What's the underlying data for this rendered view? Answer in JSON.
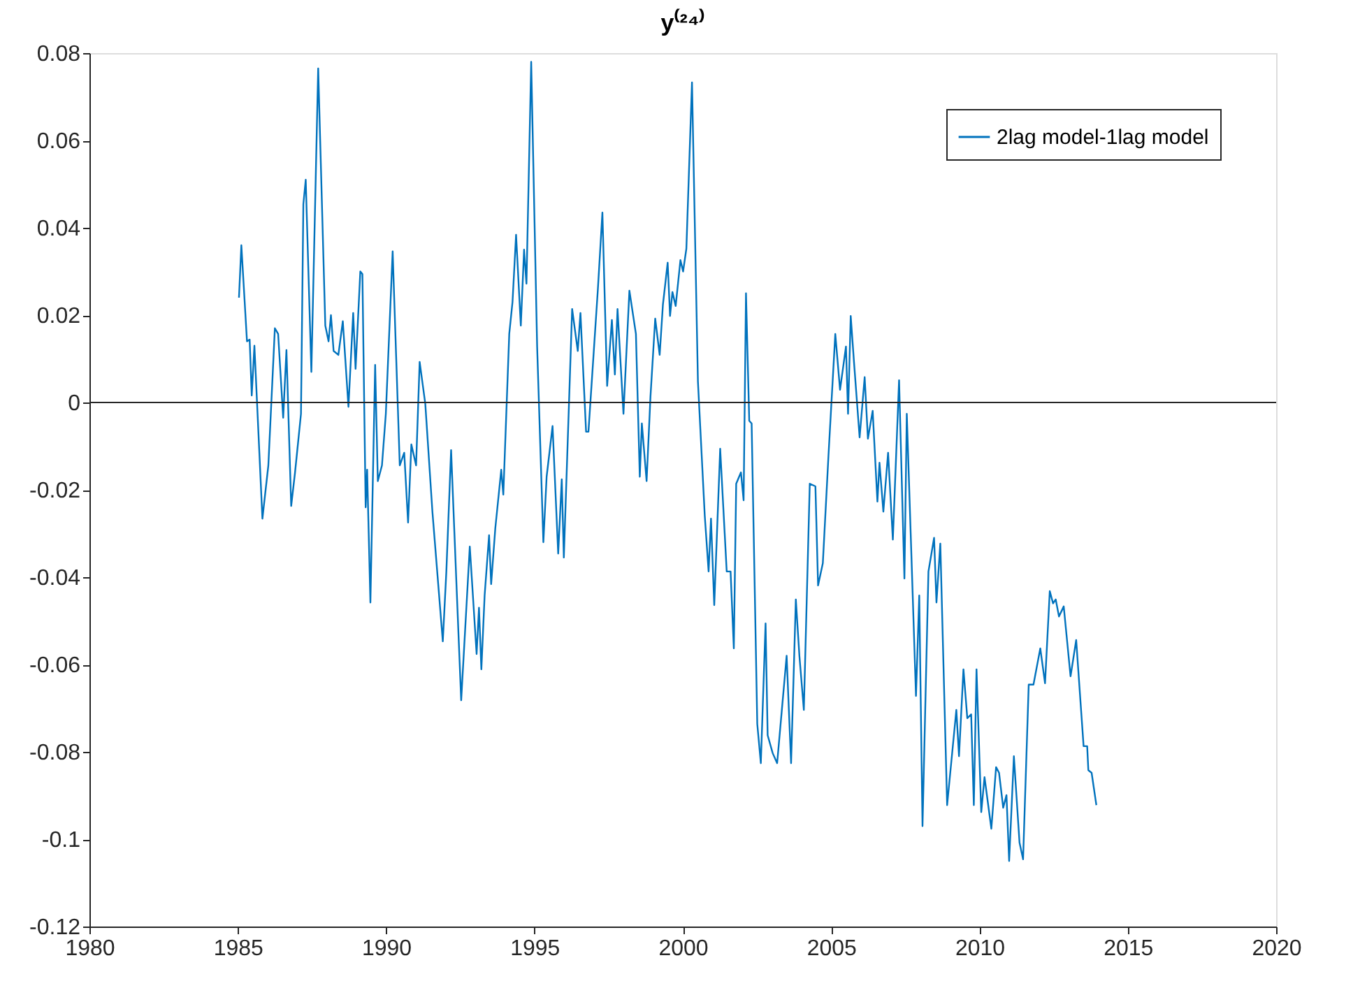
{
  "chart_data": {
    "type": "line",
    "title": "y⁽²⁴⁾",
    "x": [
      1985.04,
      1985.12,
      1985.31,
      1985.4,
      1985.47,
      1985.56,
      1985.83,
      1986.03,
      1986.25,
      1986.36,
      1986.53,
      1986.64,
      1986.8,
      1986.93,
      1987.13,
      1987.21,
      1987.29,
      1987.48,
      1987.71,
      1987.95,
      1988.06,
      1988.14,
      1988.23,
      1988.39,
      1988.54,
      1988.73,
      1988.89,
      1988.97,
      1989.13,
      1989.2,
      1989.31,
      1989.36,
      1989.47,
      1989.63,
      1989.72,
      1989.86,
      1989.99,
      1990.22,
      1990.46,
      1990.61,
      1990.74,
      1990.85,
      1991.01,
      1991.13,
      1991.32,
      1991.56,
      1991.91,
      1992.03,
      1992.19,
      1992.38,
      1992.53,
      1992.82,
      1993.05,
      1993.13,
      1993.21,
      1993.32,
      1993.47,
      1993.54,
      1993.68,
      1993.88,
      1993.95,
      1994.15,
      1994.26,
      1994.38,
      1994.54,
      1994.65,
      1994.73,
      1994.89,
      1995.09,
      1995.3,
      1995.41,
      1995.61,
      1995.8,
      1995.92,
      1995.99,
      1996.27,
      1996.46,
      1996.55,
      1996.74,
      1996.82,
      1997.14,
      1997.29,
      1997.45,
      1997.61,
      1997.71,
      1997.8,
      1998.0,
      1998.2,
      1998.42,
      1998.55,
      1998.62,
      1998.78,
      1998.91,
      1999.07,
      1999.22,
      1999.33,
      1999.49,
      1999.57,
      1999.65,
      1999.76,
      1999.92,
      2000.01,
      2000.12,
      2000.31,
      2000.51,
      2000.74,
      2000.87,
      2000.95,
      2001.06,
      2001.26,
      2001.48,
      2001.61,
      2001.72,
      2001.8,
      2001.96,
      2002.05,
      2002.13,
      2002.24,
      2002.32,
      2002.51,
      2002.63,
      2002.79,
      2002.86,
      2003.03,
      2003.18,
      2003.5,
      2003.65,
      2003.81,
      2003.93,
      2004.08,
      2004.28,
      2004.47,
      2004.56,
      2004.72,
      2004.91,
      2005.14,
      2005.3,
      2005.5,
      2005.57,
      2005.66,
      2005.77,
      2005.96,
      2006.13,
      2006.24,
      2006.4,
      2006.56,
      2006.63,
      2006.76,
      2006.92,
      2007.08,
      2007.29,
      2007.47,
      2007.55,
      2007.86,
      2007.97,
      2008.08,
      2008.28,
      2008.47,
      2008.55,
      2008.68,
      2008.91,
      2009.22,
      2009.31,
      2009.46,
      2009.59,
      2009.72,
      2009.81,
      2009.9,
      2010.06,
      2010.17,
      2010.4,
      2010.56,
      2010.66,
      2010.8,
      2010.91,
      2011.0,
      2011.16,
      2011.35,
      2011.47,
      2011.66,
      2011.82,
      2012.05,
      2012.21,
      2012.37,
      2012.48,
      2012.57,
      2012.68,
      2012.84,
      2013.07,
      2013.26,
      2013.51,
      2013.63,
      2013.67,
      2013.78,
      2013.94
    ],
    "series": [
      {
        "name": "2lag model-1lag model",
        "color": "#0072bd",
        "values": [
          0.024,
          0.036,
          0.014,
          0.0144,
          0.0016,
          0.013,
          -0.0266,
          -0.0144,
          0.017,
          0.0157,
          -0.0035,
          0.012,
          -0.0237,
          -0.016,
          -0.0026,
          0.0454,
          0.051,
          0.007,
          0.0765,
          0.0176,
          0.014,
          0.02,
          0.0118,
          0.0109,
          0.0186,
          -0.001,
          0.0205,
          0.0077,
          0.03,
          0.0294,
          -0.024,
          -0.0154,
          -0.0458,
          0.0086,
          -0.018,
          -0.0144,
          -0.0026,
          0.0346,
          -0.0144,
          -0.0115,
          -0.0275,
          -0.0096,
          -0.0144,
          0.0093,
          -0.0003,
          -0.025,
          -0.0547,
          -0.0387,
          -0.0109,
          -0.0432,
          -0.0682,
          -0.033,
          -0.0576,
          -0.047,
          -0.0611,
          -0.0442,
          -0.0304,
          -0.0416,
          -0.0288,
          -0.0154,
          -0.0211,
          0.0157,
          0.023,
          0.0384,
          0.0176,
          0.035,
          0.0272,
          0.078,
          0.0128,
          -0.032,
          -0.017,
          -0.0054,
          -0.0346,
          -0.0176,
          -0.0355,
          0.0214,
          0.0118,
          0.0205,
          -0.0067,
          -0.0067,
          0.0262,
          0.0435,
          0.0038,
          0.0189,
          0.0064,
          0.0214,
          -0.0026,
          0.0256,
          0.0157,
          -0.017,
          -0.0048,
          -0.018,
          0.0013,
          0.0192,
          0.0109,
          0.0224,
          0.032,
          0.0198,
          0.0253,
          0.0221,
          0.0326,
          0.03,
          0.0352,
          0.0733,
          0.0048,
          -0.0259,
          -0.0387,
          -0.0266,
          -0.0464,
          -0.0106,
          -0.0387,
          -0.0387,
          -0.0563,
          -0.0186,
          -0.016,
          -0.0224,
          0.025,
          -0.0042,
          -0.0048,
          -0.0736,
          -0.0826,
          -0.0506,
          -0.0762,
          -0.0803,
          -0.0826,
          -0.058,
          -0.0826,
          -0.0451,
          -0.058,
          -0.0704,
          -0.0186,
          -0.0192,
          -0.0419,
          -0.0368,
          -0.0122,
          0.0157,
          0.0029,
          0.0128,
          -0.0026,
          0.0198,
          0.0093,
          -0.008,
          0.0058,
          -0.0083,
          -0.0019,
          -0.0227,
          -0.0138,
          -0.025,
          -0.0115,
          -0.0314,
          0.0051,
          -0.0403,
          -0.0026,
          -0.0672,
          -0.0442,
          -0.097,
          -0.0387,
          -0.031,
          -0.0458,
          -0.0323,
          -0.0922,
          -0.0704,
          -0.081,
          -0.0611,
          -0.0723,
          -0.0714,
          -0.0922,
          -0.0611,
          -0.0938,
          -0.0858,
          -0.0976,
          -0.0835,
          -0.0848,
          -0.0928,
          -0.0899,
          -0.105,
          -0.081,
          -0.1008,
          -0.1046,
          -0.0646,
          -0.0646,
          -0.0563,
          -0.0643,
          -0.0432,
          -0.046,
          -0.0451,
          -0.049,
          -0.0467,
          -0.0627,
          -0.0544,
          -0.0787,
          -0.0787,
          -0.0842,
          -0.0848,
          -0.0922
        ]
      }
    ],
    "xlim": [
      1980,
      2020
    ],
    "xticks": [
      1980,
      1985,
      1990,
      1995,
      2000,
      2005,
      2010,
      2015,
      2020
    ],
    "ylim": [
      -0.12,
      0.08
    ],
    "yticks": [
      -0.12,
      -0.1,
      -0.08,
      -0.06,
      -0.04,
      -0.02,
      0,
      0.02,
      0.04,
      0.06,
      0.08
    ],
    "ref_lines": [
      {
        "axis": "y",
        "value": 0,
        "color": "#262626"
      }
    ],
    "legend": "top right",
    "grid": false,
    "marker": "none",
    "line_style": "solid"
  }
}
